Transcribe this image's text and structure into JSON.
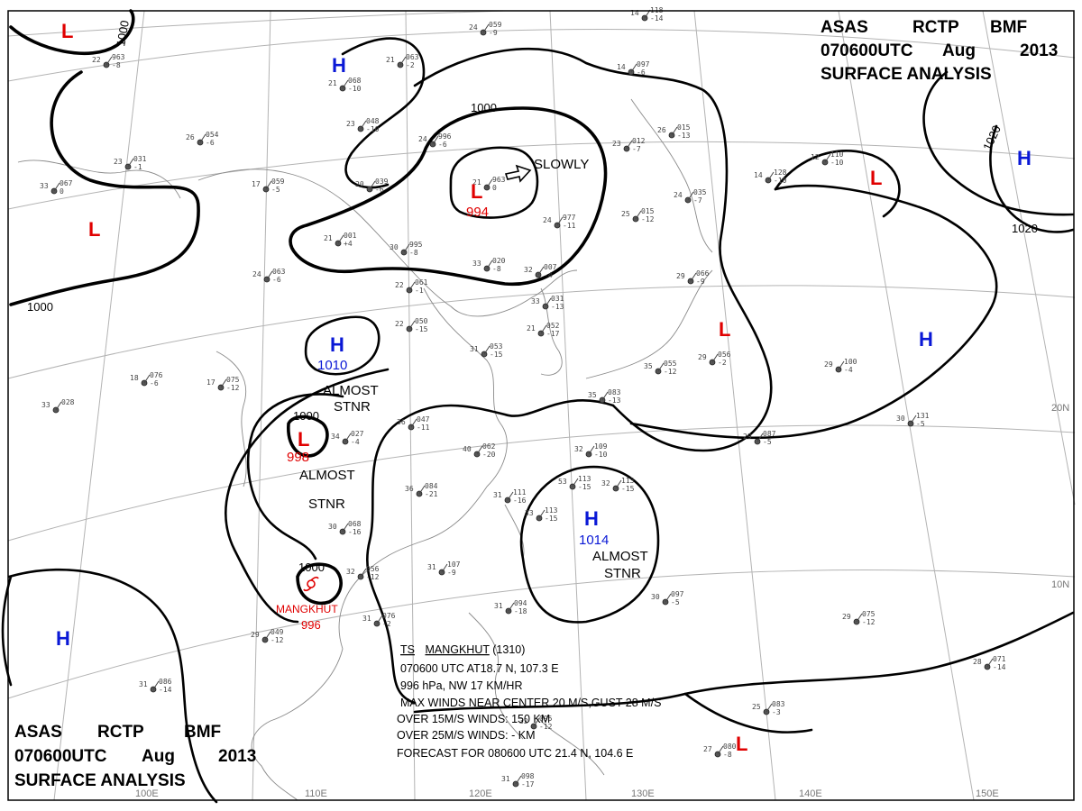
{
  "header_top": {
    "line1": [
      "ASAS",
      "RCTP",
      "BMF"
    ],
    "line2": [
      "070600UTC",
      "Aug",
      "2013"
    ],
    "line3": "SURFACE  ANALYSIS"
  },
  "header_bottom": {
    "line1": [
      "ASAS",
      "RCTP",
      "BMF"
    ],
    "line2": [
      "070600UTC",
      "Aug",
      "2013"
    ],
    "line3": "SURFACE  ANALYSIS"
  },
  "isobar_labels": [
    {
      "id": "iso-1000-nw",
      "text": "1000"
    },
    {
      "id": "iso-1000-w",
      "text": "1000"
    },
    {
      "id": "iso-1000-n",
      "text": "1000"
    },
    {
      "id": "iso-1000-sw",
      "text": "1000"
    },
    {
      "id": "iso-1000-ts",
      "text": "1000"
    },
    {
      "id": "iso-1020-ne",
      "text": "1020"
    },
    {
      "id": "iso-1020-e",
      "text": "1020"
    }
  ],
  "pressure_centers": [
    {
      "id": "low-nw-corner",
      "type": "L",
      "value": ""
    },
    {
      "id": "low-west",
      "type": "L",
      "value": ""
    },
    {
      "id": "high-north",
      "type": "H",
      "value": ""
    },
    {
      "id": "low-mongolia",
      "type": "L",
      "value": "994"
    },
    {
      "id": "high-central",
      "type": "H",
      "value": "1010"
    },
    {
      "id": "low-sichuan",
      "type": "L",
      "value": "998"
    },
    {
      "id": "high-ne-asia",
      "type": "L",
      "value": ""
    },
    {
      "id": "high-far-ne",
      "type": "H",
      "value": ""
    },
    {
      "id": "low-japan",
      "type": "L",
      "value": ""
    },
    {
      "id": "high-pacific",
      "type": "H",
      "value": ""
    },
    {
      "id": "high-scs",
      "type": "H",
      "value": "1014"
    },
    {
      "id": "high-sw",
      "type": "H",
      "value": ""
    },
    {
      "id": "low-se",
      "type": "L",
      "value": ""
    }
  ],
  "remarks": [
    {
      "id": "remark-slowly",
      "text": "SLOWLY"
    },
    {
      "id": "remark-stnr-1a",
      "text": "ALMOST"
    },
    {
      "id": "remark-stnr-1b",
      "text": "STNR"
    },
    {
      "id": "remark-stnr-2a",
      "text": "ALMOST"
    },
    {
      "id": "remark-stnr-2b",
      "text": "STNR"
    },
    {
      "id": "remark-stnr-3a",
      "text": "ALMOST"
    },
    {
      "id": "remark-stnr-3b",
      "text": "STNR"
    }
  ],
  "storm": {
    "name": "MANGKHUT",
    "pressure": "996"
  },
  "storm_info": [
    {
      "parts": [
        "TS",
        "MANGKHUT",
        " (1310)"
      ]
    },
    {
      "parts": [
        "070600 UTC  AT18.7 N, 107.3 E"
      ]
    },
    {
      "parts": [
        "996 hPa, NW  17 KM/HR"
      ]
    },
    {
      "parts": [
        "MAX WINDS NEAR CENTER 20 M/S,GUST 28 M/S"
      ]
    },
    {
      "parts": [
        "OVER 15M/S WINDS: 150 KM"
      ]
    },
    {
      "parts": [
        "OVER 25M/S WINDS:  - KM"
      ]
    },
    {
      "parts": [
        "FORECAST  FOR 080600 UTC  21.4 N, 104.6 E"
      ]
    }
  ],
  "graticule_labels": [
    {
      "id": "lon-100e",
      "text": "100E"
    },
    {
      "id": "lon-110e",
      "text": "110E"
    },
    {
      "id": "lon-120e",
      "text": "120E"
    },
    {
      "id": "lon-130e",
      "text": "130E"
    },
    {
      "id": "lon-140e",
      "text": "140E"
    },
    {
      "id": "lon-150e",
      "text": "150E"
    },
    {
      "id": "lat-20n",
      "text": "20N"
    },
    {
      "id": "lat-10n",
      "text": "10N"
    }
  ],
  "stations": [
    {
      "t": "22",
      "p": "963",
      "d": "-8"
    },
    {
      "t": "26",
      "p": "054",
      "d": "-6"
    },
    {
      "t": "23",
      "p": "031",
      "d": "-1"
    },
    {
      "t": "33",
      "p": "067",
      "d": "0"
    },
    {
      "t": "17",
      "p": "059",
      "d": "-5"
    },
    {
      "t": "20",
      "p": "039",
      "d": "-6"
    },
    {
      "t": "30",
      "p": "995",
      "d": "-8"
    },
    {
      "t": "21",
      "p": "001",
      "d": "+4"
    },
    {
      "t": "24",
      "p": "063",
      "d": "-6"
    },
    {
      "t": "22",
      "p": "061",
      "d": "-1"
    },
    {
      "t": "22",
      "p": "050",
      "d": "-15"
    },
    {
      "t": "33",
      "p": "020",
      "d": "-8"
    },
    {
      "t": "32",
      "p": "007",
      "d": "-4"
    },
    {
      "t": "31",
      "p": "053",
      "d": "-15"
    },
    {
      "t": "33",
      "p": "031",
      "d": "-13"
    },
    {
      "t": "21",
      "p": "052",
      "d": "-17"
    },
    {
      "t": "24",
      "p": "977",
      "d": "-11"
    },
    {
      "t": "25",
      "p": "015",
      "d": "-12"
    },
    {
      "t": "24",
      "p": "035",
      "d": "-7"
    },
    {
      "t": "23",
      "p": "012",
      "d": "-7"
    },
    {
      "t": "26",
      "p": "015",
      "d": "-13"
    },
    {
      "t": "29",
      "p": "066",
      "d": "-9"
    },
    {
      "t": "29",
      "p": "056",
      "d": "-2"
    },
    {
      "t": "35",
      "p": "055",
      "d": "-12"
    },
    {
      "t": "35",
      "p": "083",
      "d": "-13"
    },
    {
      "t": "34",
      "p": "027",
      "d": "-4"
    },
    {
      "t": "36",
      "p": "047",
      "d": "-11"
    },
    {
      "t": "40",
      "p": "062",
      "d": "-20"
    },
    {
      "t": "36",
      "p": "084",
      "d": "-21"
    },
    {
      "t": "31",
      "p": "111",
      "d": "-16"
    },
    {
      "t": "33",
      "p": "113",
      "d": "-15"
    },
    {
      "t": "32",
      "p": "109",
      "d": "-10"
    },
    {
      "t": "53",
      "p": "113",
      "d": "-15"
    },
    {
      "t": "32",
      "p": "113",
      "d": "-15"
    },
    {
      "t": "30",
      "p": "068",
      "d": "-16"
    },
    {
      "t": "32",
      "p": "056",
      "d": "-12"
    },
    {
      "t": "31",
      "p": "107",
      "d": "-9"
    },
    {
      "t": "31",
      "p": "076",
      "d": "-2"
    },
    {
      "t": "29",
      "p": "049",
      "d": "-12"
    },
    {
      "t": "31",
      "p": "086",
      "d": "-14"
    },
    {
      "t": "33",
      "p": "028",
      "d": ""
    },
    {
      "t": "18",
      "p": "076",
      "d": "-6"
    },
    {
      "t": "17",
      "p": "075",
      "d": "-12"
    },
    {
      "t": "29",
      "p": "100",
      "d": "-4"
    },
    {
      "t": "30",
      "p": "131",
      "d": "-5"
    },
    {
      "t": "29",
      "p": "087",
      "d": "-5"
    },
    {
      "t": "30",
      "p": "097",
      "d": "-5"
    },
    {
      "t": "29",
      "p": "075",
      "d": "-12"
    },
    {
      "t": "28",
      "p": "071",
      "d": "-14"
    },
    {
      "t": "25",
      "p": "083",
      "d": "-3"
    },
    {
      "t": "27",
      "p": "080",
      "d": "-8"
    },
    {
      "t": "31",
      "p": "098",
      "d": "-17"
    },
    {
      "t": "32",
      "p": "095",
      "d": "-12"
    },
    {
      "t": "31",
      "p": "094",
      "d": "-18"
    },
    {
      "t": "14",
      "p": "118",
      "d": "-14"
    },
    {
      "t": "14",
      "p": "097",
      "d": "-6"
    },
    {
      "t": "21",
      "p": "068",
      "d": "-10"
    },
    {
      "t": "23",
      "p": "048",
      "d": "-10"
    },
    {
      "t": "21",
      "p": "063",
      "d": "-2"
    },
    {
      "t": "24",
      "p": "996",
      "d": "-6"
    },
    {
      "t": "21",
      "p": "963",
      "d": "0"
    },
    {
      "t": "12",
      "p": "110",
      "d": "-10"
    },
    {
      "t": "14",
      "p": "128",
      "d": "-10"
    },
    {
      "t": "24",
      "p": "059",
      "d": "-9"
    }
  ]
}
